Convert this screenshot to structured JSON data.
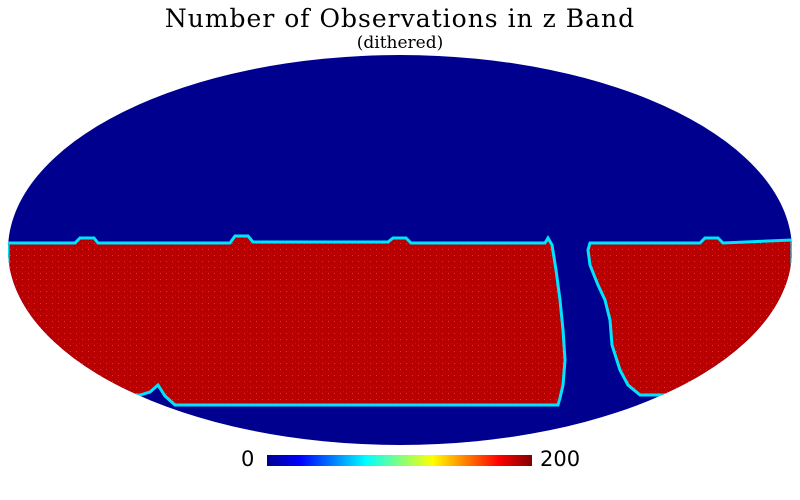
{
  "title": "Number of Observations in z Band",
  "subtitle": "(dithered)",
  "colors": {
    "background_region": "#00008f",
    "observed_region": "#b80000",
    "edge_gradient": [
      "#00008f",
      "#0000ff",
      "#00ffff",
      "#ffff00",
      "#ff7f00",
      "#b80000"
    ]
  },
  "projection": "mollweide",
  "colorbar": {
    "min_label": "0",
    "max_label": "200",
    "colormap": "jet"
  }
}
